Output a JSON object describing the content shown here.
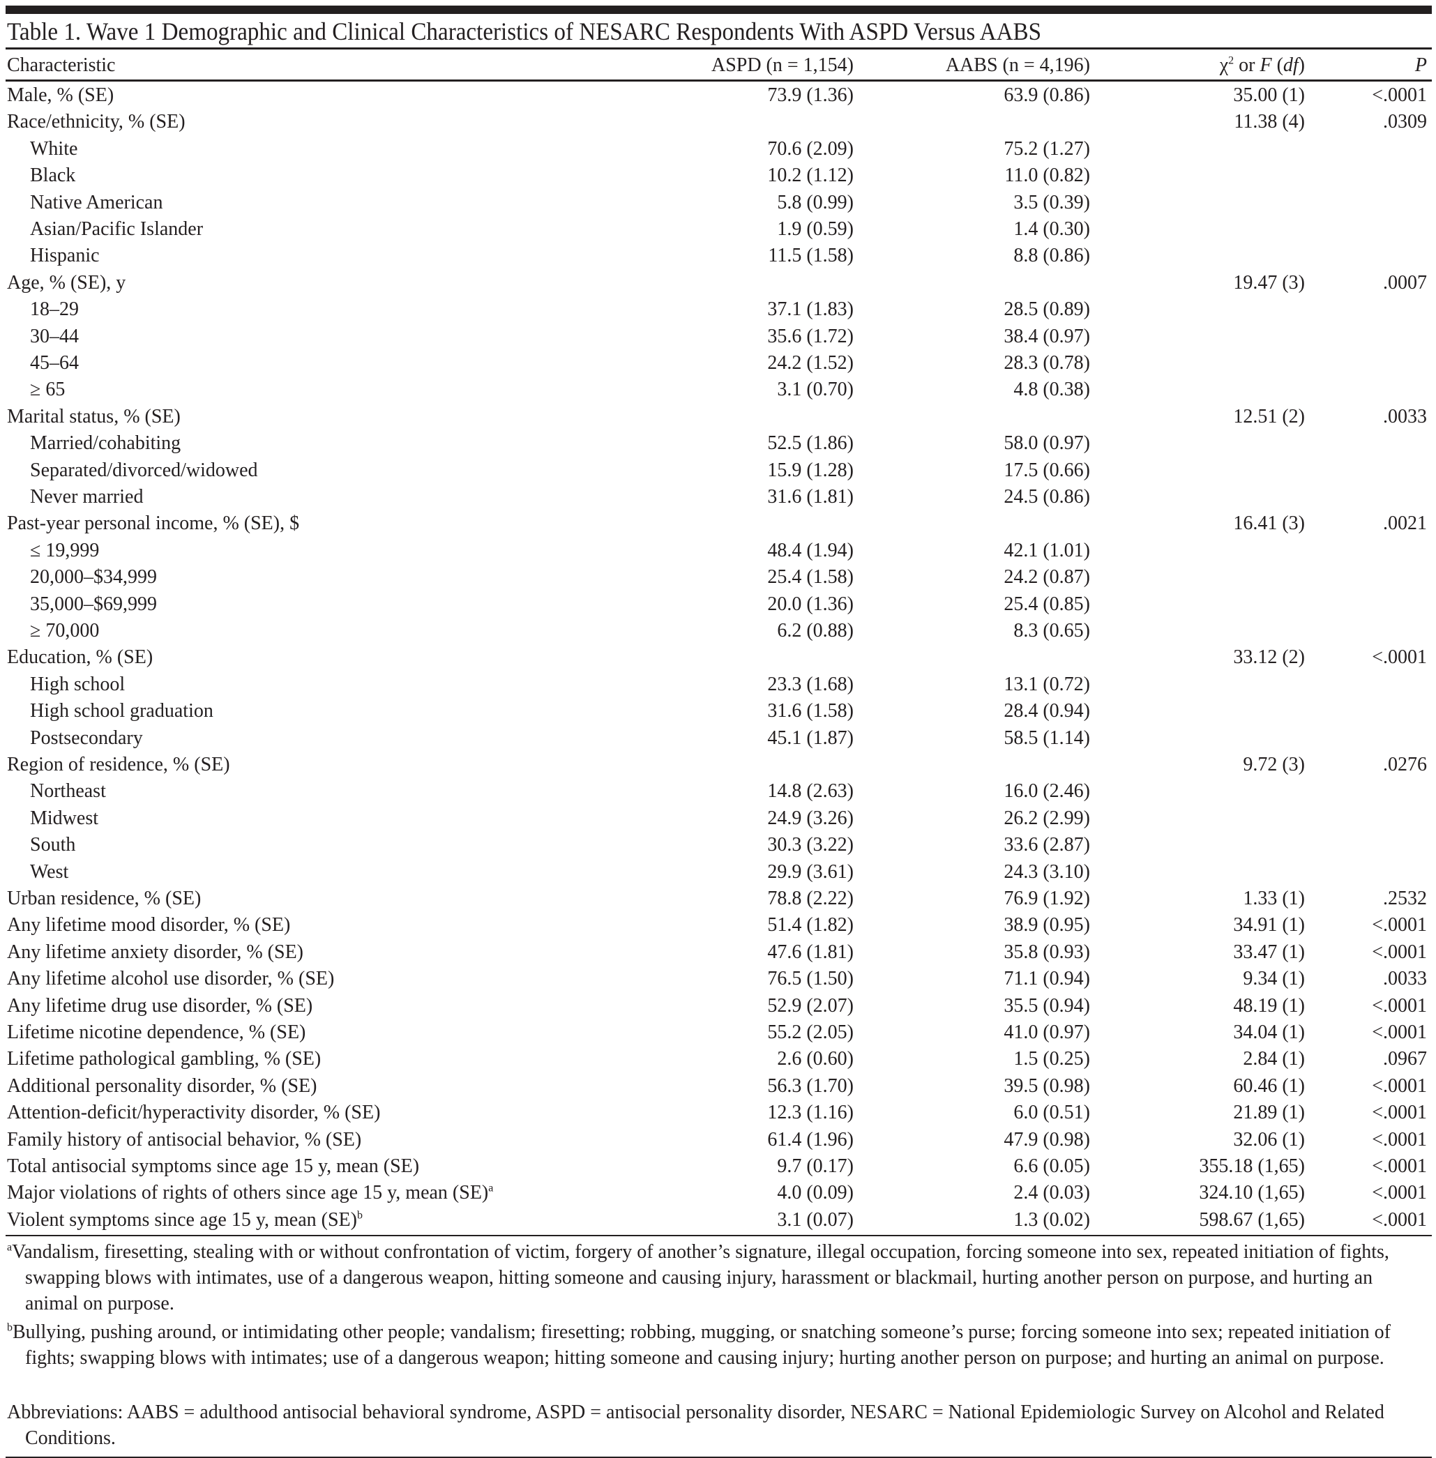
{
  "title": "Table 1. Wave 1 Demographic and Clinical Characteristics of NESARC Respondents With ASPD Versus AABS",
  "header": {
    "characteristic": "Characteristic",
    "aspd": "ASPD (n = 1,154)",
    "aabs": "AABS (n = 4,196)",
    "stat_chi": "χ",
    "stat_sup": "2",
    "stat_or": " or ",
    "stat_f": "F",
    "stat_df": "df",
    "p": "P"
  },
  "rows": [
    {
      "label": "Male, % (SE)",
      "aspd": "73.9 (1.36)",
      "aabs": "63.9 (0.86)",
      "stat": "35.00 (1)",
      "p": "<.0001"
    },
    {
      "label": "Race/ethnicity, % (SE)",
      "aspd": "",
      "aabs": "",
      "stat": "11.38 (4)",
      "p": ".0309"
    },
    {
      "label": "White",
      "indent": true,
      "aspd": "70.6 (2.09)",
      "aabs": "75.2 (1.27)",
      "stat": "",
      "p": ""
    },
    {
      "label": "Black",
      "indent": true,
      "aspd": "10.2 (1.12)",
      "aabs": "11.0 (0.82)",
      "stat": "",
      "p": ""
    },
    {
      "label": "Native American",
      "indent": true,
      "aspd": "5.8 (0.99)",
      "aabs": "3.5 (0.39)",
      "stat": "",
      "p": ""
    },
    {
      "label": "Asian/Pacific Islander",
      "indent": true,
      "aspd": "1.9 (0.59)",
      "aabs": "1.4 (0.30)",
      "stat": "",
      "p": ""
    },
    {
      "label": "Hispanic",
      "indent": true,
      "aspd": "11.5 (1.58)",
      "aabs": "8.8 (0.86)",
      "stat": "",
      "p": ""
    },
    {
      "label": "Age, % (SE), y",
      "aspd": "",
      "aabs": "",
      "stat": "19.47 (3)",
      "p": ".0007"
    },
    {
      "label": "18–29",
      "indent": true,
      "aspd": "37.1 (1.83)",
      "aabs": "28.5 (0.89)",
      "stat": "",
      "p": ""
    },
    {
      "label": "30–44",
      "indent": true,
      "aspd": "35.6 (1.72)",
      "aabs": "38.4 (0.97)",
      "stat": "",
      "p": ""
    },
    {
      "label": "45–64",
      "indent": true,
      "aspd": "24.2 (1.52)",
      "aabs": "28.3 (0.78)",
      "stat": "",
      "p": ""
    },
    {
      "label": "≥ 65",
      "indent": true,
      "aspd": "3.1 (0.70)",
      "aabs": "4.8 (0.38)",
      "stat": "",
      "p": ""
    },
    {
      "label": "Marital status, % (SE)",
      "aspd": "",
      "aabs": "",
      "stat": "12.51 (2)",
      "p": ".0033"
    },
    {
      "label": "Married/cohabiting",
      "indent": true,
      "aspd": "52.5 (1.86)",
      "aabs": "58.0 (0.97)",
      "stat": "",
      "p": ""
    },
    {
      "label": "Separated/divorced/widowed",
      "indent": true,
      "aspd": "15.9 (1.28)",
      "aabs": "17.5 (0.66)",
      "stat": "",
      "p": ""
    },
    {
      "label": "Never married",
      "indent": true,
      "aspd": "31.6 (1.81)",
      "aabs": "24.5 (0.86)",
      "stat": "",
      "p": ""
    },
    {
      "label": "Past-year personal income, % (SE), $",
      "aspd": "",
      "aabs": "",
      "stat": "16.41 (3)",
      "p": ".0021"
    },
    {
      "label": "≤ 19,999",
      "indent": true,
      "aspd": "48.4 (1.94)",
      "aabs": "42.1 (1.01)",
      "stat": "",
      "p": ""
    },
    {
      "label": "20,000–$34,999",
      "indent": true,
      "aspd": "25.4 (1.58)",
      "aabs": "24.2 (0.87)",
      "stat": "",
      "p": ""
    },
    {
      "label": "35,000–$69,999",
      "indent": true,
      "aspd": "20.0 (1.36)",
      "aabs": "25.4 (0.85)",
      "stat": "",
      "p": ""
    },
    {
      "label": "≥ 70,000",
      "indent": true,
      "aspd": "6.2 (0.88)",
      "aabs": "8.3 (0.65)",
      "stat": "",
      "p": ""
    },
    {
      "label": "Education, % (SE)",
      "aspd": "",
      "aabs": "",
      "stat": "33.12 (2)",
      "p": "<.0001"
    },
    {
      "label": "High school",
      "indent": true,
      "aspd": "23.3 (1.68)",
      "aabs": "13.1 (0.72)",
      "stat": "",
      "p": ""
    },
    {
      "label": "High school graduation",
      "indent": true,
      "aspd": "31.6 (1.58)",
      "aabs": "28.4 (0.94)",
      "stat": "",
      "p": ""
    },
    {
      "label": "Postsecondary",
      "indent": true,
      "aspd": "45.1 (1.87)",
      "aabs": "58.5 (1.14)",
      "stat": "",
      "p": ""
    },
    {
      "label": "Region of residence, % (SE)",
      "aspd": "",
      "aabs": "",
      "stat": "9.72 (3)",
      "p": ".0276"
    },
    {
      "label": "Northeast",
      "indent": true,
      "aspd": "14.8 (2.63)",
      "aabs": "16.0 (2.46)",
      "stat": "",
      "p": ""
    },
    {
      "label": "Midwest",
      "indent": true,
      "aspd": "24.9 (3.26)",
      "aabs": "26.2 (2.99)",
      "stat": "",
      "p": ""
    },
    {
      "label": "South",
      "indent": true,
      "aspd": "30.3 (3.22)",
      "aabs": "33.6 (2.87)",
      "stat": "",
      "p": ""
    },
    {
      "label": "West",
      "indent": true,
      "aspd": "29.9 (3.61)",
      "aabs": "24.3 (3.10)",
      "stat": "",
      "p": ""
    },
    {
      "label": "Urban residence, % (SE)",
      "aspd": "78.8 (2.22)",
      "aabs": "76.9 (1.92)",
      "stat": "1.33 (1)",
      "p": ".2532"
    },
    {
      "label": "Any lifetime mood disorder, % (SE)",
      "aspd": "51.4 (1.82)",
      "aabs": "38.9 (0.95)",
      "stat": "34.91 (1)",
      "p": "<.0001"
    },
    {
      "label": "Any lifetime anxiety disorder, % (SE)",
      "aspd": "47.6 (1.81)",
      "aabs": "35.8 (0.93)",
      "stat": "33.47 (1)",
      "p": "<.0001"
    },
    {
      "label": "Any lifetime alcohol use disorder, % (SE)",
      "aspd": "76.5 (1.50)",
      "aabs": "71.1 (0.94)",
      "stat": "9.34 (1)",
      "p": ".0033"
    },
    {
      "label": "Any lifetime drug use disorder, % (SE)",
      "aspd": "52.9 (2.07)",
      "aabs": "35.5 (0.94)",
      "stat": "48.19 (1)",
      "p": "<.0001"
    },
    {
      "label": "Lifetime nicotine dependence, % (SE)",
      "aspd": "55.2 (2.05)",
      "aabs": "41.0 (0.97)",
      "stat": "34.04 (1)",
      "p": "<.0001"
    },
    {
      "label": "Lifetime pathological gambling, % (SE)",
      "aspd": "2.6 (0.60)",
      "aabs": "1.5 (0.25)",
      "stat": "2.84 (1)",
      "p": ".0967"
    },
    {
      "label": "Additional personality disorder, % (SE)",
      "aspd": "56.3 (1.70)",
      "aabs": "39.5 (0.98)",
      "stat": "60.46 (1)",
      "p": "<.0001"
    },
    {
      "label": "Attention-deficit/hyperactivity disorder, % (SE)",
      "aspd": "12.3 (1.16)",
      "aabs": "6.0 (0.51)",
      "stat": "21.89 (1)",
      "p": "<.0001"
    },
    {
      "label": "Family history of antisocial behavior, % (SE)",
      "aspd": "61.4 (1.96)",
      "aabs": "47.9 (0.98)",
      "stat": "32.06 (1)",
      "p": "<.0001"
    },
    {
      "label": "Total antisocial symptoms since age 15 y, mean (SE)",
      "aspd": "9.7 (0.17)",
      "aabs": "6.6 (0.05)",
      "stat": "355.18 (1,65)",
      "p": "<.0001"
    },
    {
      "label": "Major violations of rights of others since age 15 y, mean (SE)",
      "sup": "a",
      "aspd": "4.0 (0.09)",
      "aabs": "2.4 (0.03)",
      "stat": "324.10 (1,65)",
      "p": "<.0001"
    },
    {
      "label": "Violent symptoms since age 15 y, mean (SE)",
      "sup": "b",
      "aspd": "3.1 (0.07)",
      "aabs": "1.3 (0.02)",
      "stat": "598.67 (1,65)",
      "p": "<.0001"
    }
  ],
  "footnotes": [
    {
      "mark": "a",
      "text": "Vandalism, firesetting, stealing with or without confrontation of victim, forgery of another’s signature, illegal occupation, forcing someone into sex, repeated initiation of fights, swapping blows with intimates, use of a dangerous weapon, hitting someone and causing injury, harassment or blackmail, hurting another person on purpose, and hurting an animal on purpose."
    },
    {
      "mark": "b",
      "text": "Bullying, pushing around, or intimidating other people; vandalism; firesetting; robbing, mugging, or snatching someone’s purse; forcing someone into sex; repeated initiation of fights; swapping blows with intimates; use of a dangerous weapon; hitting someone and causing injury; hurting another person on purpose; and hurting an animal on purpose."
    },
    {
      "mark": "",
      "text": "Abbreviations: AABS = adulthood antisocial behavioral syndrome, ASPD = antisocial personality disorder, NESARC = National Epidemiologic Survey on Alcohol and Related Conditions."
    }
  ]
}
